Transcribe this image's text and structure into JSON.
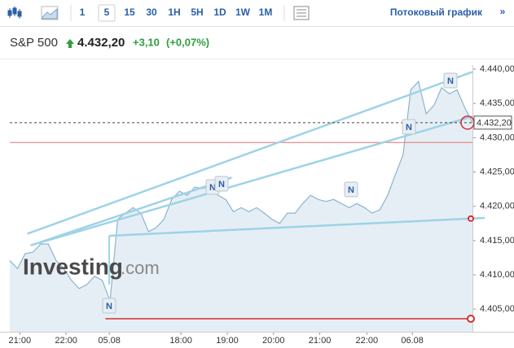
{
  "toolbar": {
    "intervals": [
      "1",
      "5",
      "15",
      "30",
      "1H",
      "5H",
      "1D",
      "1W",
      "1M"
    ],
    "selected": "5",
    "stream_link": "Потоковый график",
    "more": "»"
  },
  "header": {
    "symbol": "S&P 500",
    "price": "4.432,20",
    "change": "+3,10",
    "change_pct": "(+0,07%)"
  },
  "watermark": {
    "brand": "Investing",
    "suffix": ".com"
  },
  "chart_data": {
    "type": "area",
    "series": [
      {
        "name": "S&P 500",
        "color": "#8ab4d0",
        "fill": "#e6eef5",
        "values": [
          4412.1,
          4410.9,
          4413.1,
          4413.3,
          4414.5,
          4414.5,
          4412.1,
          4410.9,
          4409.2,
          4408.0,
          4408.6,
          4409.8,
          4409.2,
          4406.2,
          4418.1,
          4419.0,
          4419.8,
          4419.0,
          4416.3,
          4416.9,
          4418.1,
          4421.0,
          4422.2,
          4421.6,
          4422.8,
          4422.6,
          4423.0,
          4421.6,
          4421.0,
          4419.2,
          4419.8,
          4419.2,
          4419.8,
          4419.0,
          4418.1,
          4417.5,
          4419.0,
          4419.0,
          4420.4,
          4421.6,
          4421.0,
          4420.7,
          4421.0,
          4420.4,
          4419.8,
          4420.4,
          4419.8,
          4419.0,
          4419.5,
          4421.6,
          4424.6,
          4427.5,
          4437.0,
          4438.2,
          4433.5,
          4434.7,
          4437.3,
          4436.4,
          4437.0,
          4434.4,
          4432.2
        ]
      }
    ],
    "xlim": [
      0,
      60
    ],
    "xticks": [
      {
        "value": 1.3,
        "label": "21:00"
      },
      {
        "value": 7.3,
        "label": "22:00"
      },
      {
        "value": 12.9,
        "label": "05.08"
      },
      {
        "value": 22.2,
        "label": "18:00"
      },
      {
        "value": 28.2,
        "label": "19:00"
      },
      {
        "value": 34.2,
        "label": "20:00"
      },
      {
        "value": 40.2,
        "label": "21:00"
      },
      {
        "value": 46.3,
        "label": "22:00"
      },
      {
        "value": 52.2,
        "label": "06.08"
      }
    ],
    "ylim": [
      4401.7,
      4440.6
    ],
    "yticks": [
      {
        "value": 4405,
        "label": "4.405,00"
      },
      {
        "value": 4410,
        "label": "4.410,00"
      },
      {
        "value": 4415,
        "label": "4.415,00"
      },
      {
        "value": 4420,
        "label": "4.420,00"
      },
      {
        "value": 4425,
        "label": "4.425,00"
      },
      {
        "value": 4430,
        "label": "4.430,00"
      },
      {
        "value": 4435,
        "label": "4.435,00"
      },
      {
        "value": 4440,
        "label": "4.440,00"
      }
    ],
    "last_price": {
      "value": 4432.2,
      "label": "4.432,20"
    },
    "hlines": [
      {
        "value": 4429.3,
        "color": "#e57373"
      },
      {
        "value": 4403.6,
        "color": "#d32f2f",
        "from": 12.4
      }
    ],
    "trendlines": [
      {
        "x": [
          2.3,
          60
        ],
        "y": [
          4416.0,
          4439.6
        ]
      },
      {
        "x": [
          3.8,
          28.8
        ],
        "y": [
          4414.7,
          4424.2
        ]
      },
      {
        "x": [
          2.7,
          60
        ],
        "y": [
          4414.3,
          4433.1
        ]
      },
      {
        "x": [
          12.9,
          61.6
        ],
        "y": [
          4415.7,
          4418.3
        ]
      }
    ],
    "trend_color": "#9dd3e6",
    "news_markers": [
      "N",
      "N",
      "N",
      "N",
      "N",
      "N"
    ]
  }
}
